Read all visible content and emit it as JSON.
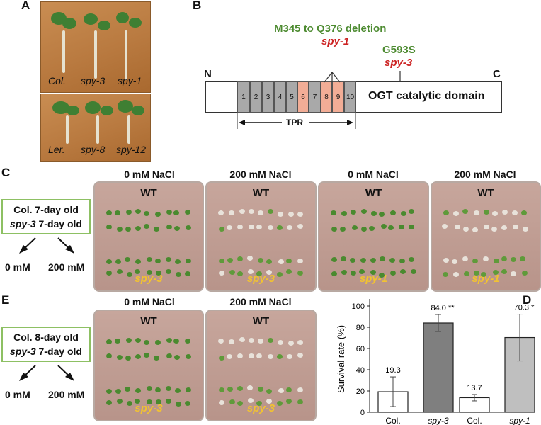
{
  "panels": {
    "a": "A",
    "b": "B",
    "c": "C",
    "d": "D",
    "e": "E"
  },
  "panel_a": {
    "top_labels": [
      "Col.",
      "spy-3",
      "spy-1"
    ],
    "bottom_labels": [
      "Ler.",
      "spy-8",
      "spy-12"
    ]
  },
  "panel_b": {
    "n_term": "N",
    "c_term": "C",
    "deletion": "M345 to Q376 deletion",
    "spy1": "spy-1",
    "g593s": "G593S",
    "spy3": "spy-3",
    "domain": "OGT catalytic domain",
    "tpr_label": "TPR",
    "tpr_repeats": [
      "1",
      "2",
      "3",
      "4",
      "5",
      "6",
      "7",
      "8",
      "9",
      "10"
    ]
  },
  "panel_c": {
    "conditions": [
      "0 mM NaCl",
      "200 mM NaCl",
      "0 mM NaCl",
      "200 mM NaCl"
    ],
    "wt": "WT",
    "mutants": [
      "spy-3",
      "spy-3",
      "spy-1",
      "spy-1"
    ],
    "box_line1": "Col.  7-day old",
    "box_line2_mut": "spy-3",
    "box_line2_rest": " 7-day old",
    "arrow_left": "0 mM",
    "arrow_right": "200 mM"
  },
  "panel_e": {
    "conditions": [
      "0 mM NaCl",
      "200 mM NaCl"
    ],
    "wt": "WT",
    "mutants": [
      "spy-3",
      "spy-3"
    ],
    "box_line1": "Col.  8-day old",
    "box_line2_mut": "spy-3",
    "box_line2_rest": " 7-day old",
    "arrow_left": "0 mM",
    "arrow_right": "200 mM"
  },
  "chart_data": {
    "type": "bar",
    "categories": [
      "Col.",
      "spy-3",
      "Col.",
      "spy-1"
    ],
    "values": [
      19.3,
      84.0,
      13.7,
      70.3
    ],
    "errors": [
      14,
      8,
      3,
      22
    ],
    "value_labels": [
      "19.3",
      "84.0 **",
      "13.7",
      "70.3 *"
    ],
    "colors": [
      "#ffffff",
      "#7f7f7f",
      "#ffffff",
      "#bfbfbf"
    ],
    "ylabel": "Survival  rate (%)",
    "ylim": [
      0,
      100
    ],
    "yticks": [
      0,
      20,
      40,
      60,
      80,
      100
    ]
  }
}
